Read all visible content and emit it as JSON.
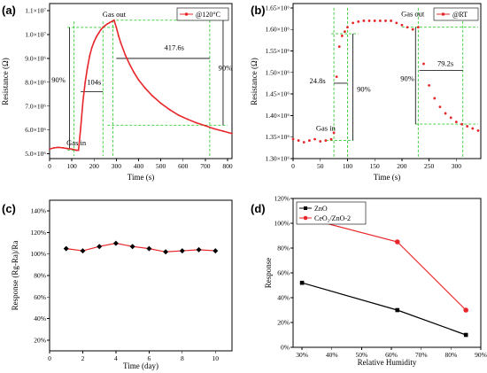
{
  "chart_data": [
    {
      "panel": "(a)",
      "type": "line",
      "xlabel": "Time (s)",
      "ylabel": "Resistance (Ω)",
      "xlim": [
        0,
        820
      ],
      "ylim": [
        4.8,
        11.3
      ],
      "y_multiplier_note": "×10^6",
      "xticks": [
        0,
        100,
        200,
        300,
        400,
        500,
        600,
        700,
        800
      ],
      "yticks": [
        5,
        6,
        7,
        8,
        9,
        10,
        11
      ],
      "ytick_labels": [
        "5.0×10⁶",
        "6.0×10⁶",
        "7.0×10⁶",
        "8.0×10⁶",
        "9.0×10⁶",
        "1.0×10⁷",
        "1.1×10⁷"
      ],
      "legend": "@120°C",
      "series": [
        {
          "name": "@120°C",
          "color": "#e8262a",
          "x": [
            0,
            20,
            40,
            60,
            80,
            100,
            120,
            130,
            140,
            150,
            160,
            170,
            180,
            190,
            200,
            210,
            220,
            230,
            240,
            250,
            260,
            270,
            280,
            290,
            300,
            310,
            320,
            340,
            360,
            380,
            400,
            430,
            460,
            500,
            540,
            580,
            620,
            660,
            700,
            740,
            780,
            820
          ],
          "y": [
            5.2,
            5.25,
            5.27,
            5.25,
            5.22,
            5.2,
            5.15,
            5.15,
            6.1,
            7.2,
            8.0,
            8.6,
            9.1,
            9.45,
            9.7,
            9.9,
            10.05,
            10.2,
            10.3,
            10.38,
            10.45,
            10.5,
            10.55,
            10.6,
            10.3,
            9.95,
            9.65,
            9.15,
            8.75,
            8.4,
            8.1,
            7.75,
            7.45,
            7.12,
            6.85,
            6.62,
            6.45,
            6.3,
            6.18,
            6.05,
            5.95,
            5.85
          ]
        }
      ],
      "annotations": [
        {
          "text": "Gas in",
          "x": 120,
          "y": 5.35
        },
        {
          "text": "Gas out",
          "x": 290,
          "y": 10.75
        },
        {
          "text": "90%",
          "x": 40,
          "y": 8.0
        },
        {
          "text": "104s",
          "x": 200,
          "y": 7.9
        },
        {
          "text": "417.6s",
          "x": 560,
          "y": 9.35
        },
        {
          "text": "90%",
          "x": 790,
          "y": 8.5
        }
      ]
    },
    {
      "panel": "(b)",
      "type": "scatter",
      "xlabel": "Time (s)",
      "ylabel": "Resistance (Ω)",
      "xlim": [
        0,
        345
      ],
      "ylim": [
        1.3,
        1.66
      ],
      "y_multiplier_note": "×10^6",
      "xticks": [
        0,
        50,
        100,
        150,
        200,
        250,
        300
      ],
      "yticks": [
        1.3,
        1.35,
        1.4,
        1.45,
        1.5,
        1.55,
        1.6,
        1.65
      ],
      "ytick_labels": [
        "1.30×10⁶",
        "1.35×10⁶",
        "1.40×10⁶",
        "1.45×10⁶",
        "1.50×10⁶",
        "1.55×10⁶",
        "1.60×10⁶",
        "1.65×10⁶"
      ],
      "legend": "@RT",
      "series": [
        {
          "name": "@RT",
          "color": "#e8262a",
          "x": [
            0,
            10,
            20,
            30,
            40,
            50,
            60,
            70,
            75,
            80,
            85,
            90,
            95,
            100,
            110,
            120,
            130,
            140,
            150,
            160,
            170,
            180,
            190,
            200,
            210,
            220,
            230,
            240,
            250,
            260,
            270,
            280,
            290,
            300,
            310,
            320,
            330,
            340
          ],
          "y": [
            1.345,
            1.342,
            1.338,
            1.342,
            1.345,
            1.34,
            1.342,
            1.345,
            1.36,
            1.49,
            1.56,
            1.585,
            1.595,
            1.605,
            1.615,
            1.618,
            1.62,
            1.62,
            1.62,
            1.62,
            1.62,
            1.62,
            1.615,
            1.61,
            1.605,
            1.6,
            1.605,
            1.52,
            1.47,
            1.44,
            1.42,
            1.405,
            1.395,
            1.385,
            1.38,
            1.375,
            1.37,
            1.365
          ]
        }
      ],
      "annotations": [
        {
          "text": "Gas in",
          "x": 60,
          "y": 1.365
        },
        {
          "text": "Gas out",
          "x": 220,
          "y": 1.63
        },
        {
          "text": "24.8s",
          "x": 45,
          "y": 1.475
        },
        {
          "text": "90%",
          "x": 130,
          "y": 1.455
        },
        {
          "text": "90%",
          "x": 210,
          "y": 1.48
        },
        {
          "text": "79.2s",
          "x": 280,
          "y": 1.515
        }
      ]
    },
    {
      "panel": "(c)",
      "type": "line",
      "xlabel": "Time (day)",
      "ylabel": "Response (Rg-Ra)/Ra",
      "xlim": [
        0,
        11
      ],
      "ylim": [
        0.1,
        1.5
      ],
      "xticks": [
        0,
        2,
        4,
        6,
        8,
        10
      ],
      "yticks": [
        0.2,
        0.4,
        0.6,
        0.8,
        1.0,
        1.2,
        1.4
      ],
      "ytick_labels": [
        "20%",
        "40%",
        "60%",
        "80%",
        "100%",
        "120%",
        "140%"
      ],
      "series": [
        {
          "color": "#e8262a",
          "marker": "diamond",
          "x": [
            1,
            2,
            3,
            4,
            5,
            6,
            7,
            8,
            9,
            10
          ],
          "y": [
            1.05,
            1.03,
            1.07,
            1.1,
            1.07,
            1.05,
            1.02,
            1.03,
            1.04,
            1.03
          ]
        }
      ]
    },
    {
      "panel": "(d)",
      "type": "line",
      "xlabel": "Relative Humidity",
      "ylabel": "Response",
      "xlim": [
        0.27,
        0.9
      ],
      "ylim": [
        0,
        1.2
      ],
      "xticks": [
        0.3,
        0.4,
        0.5,
        0.6,
        0.7,
        0.8,
        0.9
      ],
      "xtick_labels": [
        "30%",
        "40%",
        "50%",
        "60%",
        "70%",
        "80%",
        "90%"
      ],
      "yticks": [
        0,
        0.2,
        0.4,
        0.6,
        0.8,
        1.0,
        1.2
      ],
      "ytick_labels": [
        "0%",
        "20%",
        "40%",
        "60%",
        "80%",
        "100%",
        "120%"
      ],
      "legend": [
        "ZnO",
        "CeO₂/ZnO-2"
      ],
      "series": [
        {
          "name": "ZnO",
          "color": "#000000",
          "marker": "square",
          "x": [
            0.3,
            0.62,
            0.85
          ],
          "y": [
            0.52,
            0.3,
            0.1
          ]
        },
        {
          "name": "CeO₂/ZnO-2",
          "color": "#e8262a",
          "marker": "circle",
          "x": [
            0.3,
            0.62,
            0.85
          ],
          "y": [
            1.05,
            0.85,
            0.3
          ]
        }
      ]
    }
  ]
}
